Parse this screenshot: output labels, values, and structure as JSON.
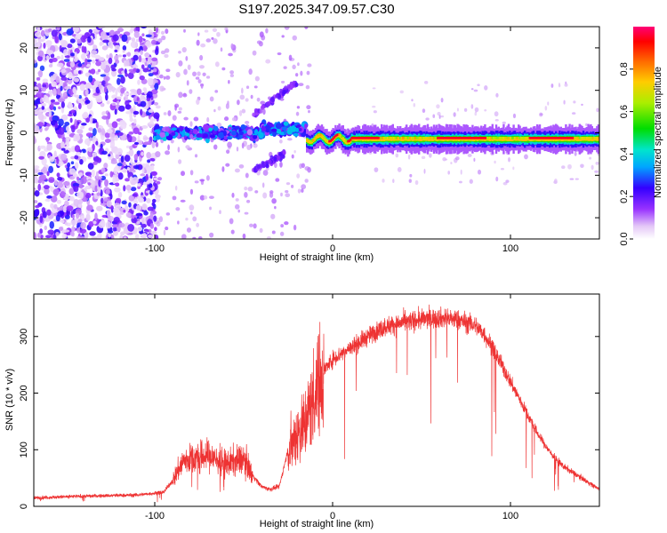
{
  "title": "S197.2025.347.09.57.C30",
  "chart_data": [
    {
      "type": "heatmap",
      "name": "spectrogram",
      "xlabel": "Height of straight line (km)",
      "ylabel": "Frequency (Hz)",
      "xlim": [
        -168,
        150
      ],
      "ylim": [
        -25,
        25
      ],
      "xticks": [
        -100,
        0,
        100
      ],
      "yticks": [
        -20,
        -10,
        0,
        10,
        20
      ],
      "colorbar": {
        "label": "Normalized spectral amplitude",
        "range": [
          0.0,
          1.0
        ],
        "ticks": [
          0.0,
          0.2,
          0.4,
          0.6,
          0.8
        ],
        "tick_labels": [
          "0.0",
          "0.2",
          "0.4",
          "0.6",
          "0.8"
        ]
      },
      "features": [
        {
          "desc": "scattered noise",
          "x_range": [
            -168,
            -98
          ],
          "y_range": [
            -25,
            25
          ],
          "amplitude": 0.1
        },
        {
          "desc": "ridge",
          "x_range": [
            -100,
            -15
          ],
          "frequency": 0,
          "amplitude": 0.25
        },
        {
          "desc": "narrow line",
          "x_range": [
            -15,
            150
          ],
          "frequency": -1.5,
          "amplitude": 0.95
        }
      ]
    },
    {
      "type": "line",
      "name": "snr",
      "xlabel": "Height of straight line (km)",
      "ylabel": "SNR (10 * v/v)",
      "xlim": [
        -168,
        150
      ],
      "ylim": [
        0,
        375
      ],
      "xticks": [
        -100,
        0,
        100
      ],
      "yticks": [
        0,
        100,
        200,
        300
      ],
      "color": "#ee3333",
      "series": [
        {
          "name": "SNR envelope",
          "x": [
            -168,
            -140,
            -110,
            -95,
            -90,
            -84,
            -78,
            -70,
            -60,
            -50,
            -45,
            -40,
            -35,
            -30,
            -25,
            -20,
            -15,
            -10,
            -5,
            0,
            5,
            10,
            15,
            20,
            25,
            30,
            40,
            50,
            60,
            70,
            80,
            85,
            90,
            95,
            100,
            105,
            110,
            115,
            120,
            125,
            130,
            140,
            150
          ],
          "y": [
            15,
            18,
            20,
            25,
            45,
            80,
            85,
            90,
            75,
            85,
            55,
            35,
            30,
            35,
            100,
            130,
            150,
            200,
            240,
            260,
            270,
            280,
            290,
            300,
            310,
            318,
            325,
            330,
            333,
            330,
            320,
            305,
            280,
            250,
            220,
            190,
            160,
            130,
            105,
            85,
            70,
            50,
            30
          ]
        }
      ]
    }
  ]
}
